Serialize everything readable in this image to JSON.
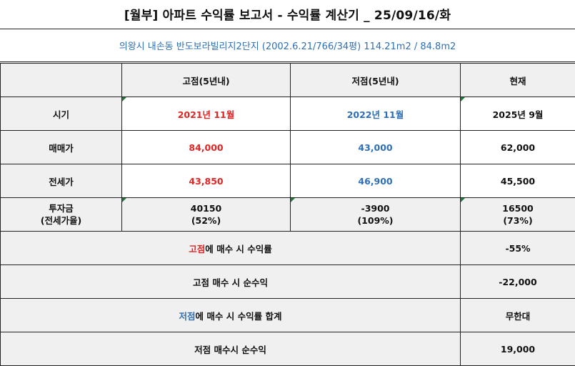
{
  "title": "[월부] 아파트 수익률 보고서 - 수익률 계산기 _ 25/09/16/화",
  "subtitle": "의왕시 내손동 반도보라빌리지2단지 (2002.6.21/766/34평) 114.21m2 / 84.8m2",
  "headers": [
    "",
    "고점(5년내)",
    "저점(5년내)",
    "현재"
  ],
  "rows": {
    "period": {
      "label": "시기",
      "high": "2021년 11월",
      "low": "2022년 11월",
      "now": "2025년 9월"
    },
    "sale": {
      "label": "매매가",
      "high": "84,000",
      "low": "43,000",
      "now": "62,000"
    },
    "jeonse": {
      "label": "전세가",
      "high": "43,850",
      "low": "46,900",
      "now": "45,500"
    },
    "invest": {
      "label1": "투자금",
      "label2": "(전세가율)",
      "high1": "40150",
      "high2": "(52%)",
      "low1": "-3900",
      "low2": "(109%)",
      "now1": "16500",
      "now2": "(73%)"
    }
  },
  "summary": {
    "high_rate": {
      "prefix": "고점",
      "suffix": "에 매수 시 수익률",
      "value": "-55%"
    },
    "high_profit": {
      "label": "고점 매수 시 순수익",
      "value": "-22,000"
    },
    "low_rate": {
      "prefix": "저점",
      "suffix": "에 매수 시 수익률 합계",
      "value": "무한대"
    },
    "low_profit": {
      "label": "저점 매수시 순수익",
      "value": "19,000"
    }
  },
  "colors": {
    "high": "#e02525",
    "low": "#2e6fb5",
    "header_bg": "#f0f0f0"
  }
}
